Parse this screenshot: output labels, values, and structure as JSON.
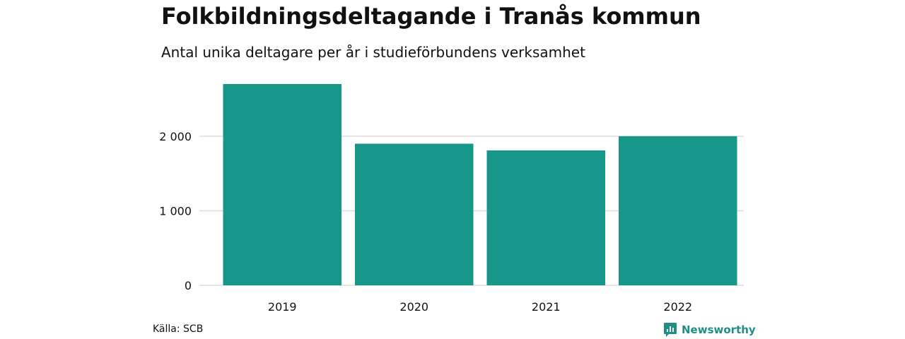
{
  "header": {
    "title": "Folkbildningsdeltagande i Tranås kommun",
    "subtitle": "Antal unika deltagare per år i studieförbundens verksamhet"
  },
  "footer": {
    "source": "Källa: SCB",
    "brand": "Newsworthy",
    "brand_icon": "newsworthy-logo-icon"
  },
  "colors": {
    "bar": "#16978a",
    "grid": "#dddddd",
    "brand": "#1f8f83"
  },
  "chart_data": {
    "type": "bar",
    "categories": [
      "2019",
      "2020",
      "2021",
      "2022"
    ],
    "values": [
      2700,
      1900,
      1810,
      2000
    ],
    "ylim": [
      0,
      2700
    ],
    "yticks": [
      0,
      1000,
      2000
    ],
    "ytick_labels": [
      "0",
      "1 000",
      "2 000"
    ],
    "grid": true,
    "xlabel": "",
    "ylabel": ""
  }
}
